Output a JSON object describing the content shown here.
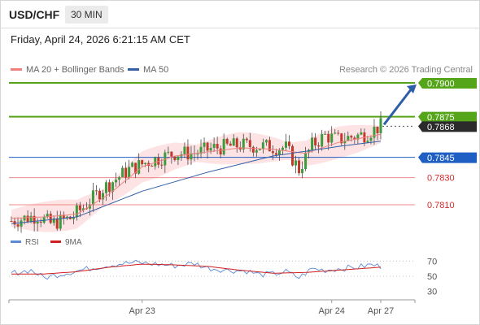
{
  "header": {
    "symbol": "USD/CHF",
    "timeframe": "30 MIN",
    "datetime": "Friday, April 24, 2026 6:21:15 AM CET"
  },
  "legend": {
    "ma20_label": "MA 20 + Bollinger Bands",
    "ma50_label": "MA 50",
    "credit": "Research © 2026 Trading Central"
  },
  "colors": {
    "up_candle": "#3c9b3c",
    "down_candle": "#c0392b",
    "ma20": "#f08080",
    "ma50": "#3460a8",
    "bollinger_fill": "#fde3e3",
    "resistance": "#55a51a",
    "pivot": "#1f5fc4",
    "support": "#f08a8a",
    "support_text": "#d22b2b",
    "arrow": "#2f5ea8",
    "rsi": "#5b8bd6",
    "rsi_ma": "#d11f1f"
  },
  "chart_data": [
    {
      "type": "candlestick",
      "title": "USD/CHF 30 MIN",
      "x_tick_labels": [
        "Apr 23",
        "Apr 24",
        "Apr 27"
      ],
      "x_tick_positions": [
        40,
        98,
        113
      ],
      "bar_count": 114,
      "ylim": [
        0.7792,
        0.7906
      ],
      "price_levels": [
        {
          "label": "0.7900",
          "value": 0.79,
          "kind": "resistance"
        },
        {
          "label": "0.7875",
          "value": 0.7875,
          "kind": "resistance"
        },
        {
          "label": "0.7868",
          "value": 0.7868,
          "kind": "last_price"
        },
        {
          "label": "0.7845",
          "value": 0.7845,
          "kind": "pivot"
        },
        {
          "label": "0.7830",
          "value": 0.783,
          "kind": "support"
        },
        {
          "label": "0.7810",
          "value": 0.781,
          "kind": "support"
        }
      ],
      "forecast_arrow": {
        "from": 0.7868,
        "to": 0.79
      },
      "close_path": [
        [
          0,
          0.7798
        ],
        [
          8,
          0.7802
        ],
        [
          12,
          0.7796
        ],
        [
          18,
          0.78
        ],
        [
          22,
          0.7808
        ],
        [
          28,
          0.7822
        ],
        [
          36,
          0.7836
        ],
        [
          42,
          0.7842
        ],
        [
          50,
          0.7848
        ],
        [
          56,
          0.7848
        ],
        [
          62,
          0.7852
        ],
        [
          70,
          0.7854
        ],
        [
          78,
          0.7853
        ],
        [
          84,
          0.7852
        ],
        [
          88,
          0.7836
        ],
        [
          92,
          0.7854
        ],
        [
          96,
          0.7861
        ],
        [
          100,
          0.7858
        ],
        [
          104,
          0.786
        ],
        [
          108,
          0.7862
        ],
        [
          113,
          0.7868
        ]
      ],
      "ma50_path": [
        [
          0,
          0.7796
        ],
        [
          20,
          0.7801
        ],
        [
          40,
          0.782
        ],
        [
          60,
          0.7834
        ],
        [
          80,
          0.7846
        ],
        [
          100,
          0.7853
        ],
        [
          113,
          0.7857
        ]
      ],
      "ma20_path": [
        [
          0,
          0.78
        ],
        [
          10,
          0.7801
        ],
        [
          20,
          0.7803
        ],
        [
          30,
          0.7818
        ],
        [
          40,
          0.7838
        ],
        [
          50,
          0.7846
        ],
        [
          60,
          0.7849
        ],
        [
          70,
          0.7852
        ],
        [
          80,
          0.7851
        ],
        [
          90,
          0.7848
        ],
        [
          100,
          0.7856
        ],
        [
          113,
          0.7862
        ]
      ],
      "bollinger_width": 0.0009
    },
    {
      "type": "line",
      "title": "RSI",
      "legend": [
        "RSI",
        "9MA"
      ],
      "y_tick_labels": [
        "70",
        "50",
        "30"
      ],
      "ylim": [
        20,
        80
      ],
      "rsi_path": [
        [
          0,
          54
        ],
        [
          6,
          58
        ],
        [
          10,
          48
        ],
        [
          14,
          52
        ],
        [
          20,
          57
        ],
        [
          26,
          62
        ],
        [
          32,
          66
        ],
        [
          38,
          68
        ],
        [
          44,
          66
        ],
        [
          50,
          64
        ],
        [
          56,
          67
        ],
        [
          60,
          61
        ],
        [
          66,
          58
        ],
        [
          72,
          57
        ],
        [
          76,
          52
        ],
        [
          80,
          53
        ],
        [
          84,
          56
        ],
        [
          88,
          48
        ],
        [
          92,
          60
        ],
        [
          96,
          58
        ],
        [
          100,
          60
        ],
        [
          106,
          62
        ],
        [
          110,
          65
        ],
        [
          113,
          63
        ]
      ],
      "rsi_ma_path": [
        [
          0,
          53
        ],
        [
          10,
          53
        ],
        [
          20,
          56
        ],
        [
          30,
          62
        ],
        [
          40,
          66
        ],
        [
          50,
          65
        ],
        [
          60,
          63
        ],
        [
          70,
          58
        ],
        [
          80,
          54
        ],
        [
          90,
          55
        ],
        [
          100,
          58
        ],
        [
          110,
          61
        ],
        [
          113,
          62
        ]
      ]
    }
  ]
}
